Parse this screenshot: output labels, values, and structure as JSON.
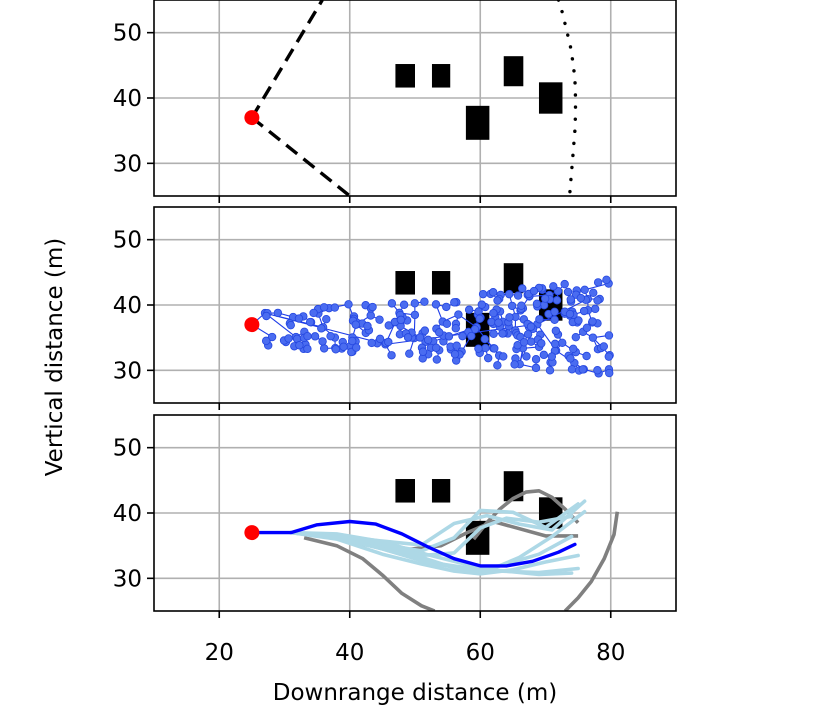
{
  "chart_data": {
    "type": "line",
    "xlabel": "Downrange distance (m)",
    "ylabel": "Vertical distance (m)",
    "xlim": [
      10,
      90
    ],
    "ylim": [
      25,
      55
    ],
    "xticks": [
      20,
      40,
      60,
      80
    ],
    "yticks": [
      30,
      40,
      50
    ],
    "grid": true,
    "colors": {
      "obstacle": "#000000",
      "start": "#ff0000",
      "tree": "#1f3de8",
      "best_path": "#0000ff",
      "sampled_paths": "#add8e6",
      "rejected_paths": "#808080"
    },
    "obstacles": [
      {
        "x": [
          47,
          50
        ],
        "y": [
          41.6,
          45.2
        ]
      },
      {
        "x": [
          52.6,
          55.4
        ],
        "y": [
          41.6,
          45.2
        ]
      },
      {
        "x": [
          57.8,
          61.4
        ],
        "y": [
          33.6,
          38.8
        ]
      },
      {
        "x": [
          63.6,
          66.6
        ],
        "y": [
          41.8,
          46.4
        ]
      },
      {
        "x": [
          69,
          72.6
        ],
        "y": [
          37.6,
          42.4
        ]
      }
    ],
    "start": {
      "x": 25,
      "y": 37
    },
    "panels": [
      {
        "name": "field-of-view",
        "fov_lines": [
          {
            "x": [
              25,
              35.8
            ],
            "y": [
              37,
              55
            ]
          },
          {
            "x": [
              25,
              40
            ],
            "y": [
              37,
              25
            ]
          }
        ],
        "boundary": {
          "x": [
            72,
            72.6,
            73.2,
            73.8,
            74.2,
            74.5,
            74.6,
            74.6,
            74.5,
            74.3,
            74.1,
            73.9,
            73.7
          ],
          "y": [
            55,
            53,
            50.5,
            48,
            45.5,
            43,
            40,
            37.5,
            35,
            32.5,
            30,
            27.5,
            25
          ]
        }
      },
      {
        "name": "rrt-tree",
        "x_range": [
          25,
          80
        ],
        "y_range": [
          29.5,
          45.3
        ]
      },
      {
        "name": "paths",
        "best_path": {
          "x": [
            25,
            31,
            35,
            40,
            44,
            48,
            52,
            56,
            60,
            64,
            68,
            72,
            74.5
          ],
          "y": [
            37,
            37,
            38.2,
            38.7,
            38.3,
            36.8,
            34.8,
            33,
            31.9,
            31.9,
            32.6,
            34,
            35.2
          ]
        },
        "rejected_paths": [
          {
            "x": [
              31,
              36,
              42,
              48,
              54,
              58,
              62,
              66,
              70,
              75
            ],
            "y": [
              37,
              36.5,
              35.2,
              34.3,
              35,
              37,
              38.7,
              37.6,
              36.5,
              36.5
            ]
          },
          {
            "x": [
              33,
              38,
              42,
              45,
              48,
              51,
              53
            ],
            "y": [
              36.2,
              35,
              33,
              30.5,
              27.7,
              25.8,
              25
            ]
          },
          {
            "x": [
              59,
              61,
              63,
              65,
              67,
              69,
              71,
              73,
              75
            ],
            "y": [
              36,
              38.5,
              40.6,
              42.2,
              43.2,
              43.4,
              42.4,
              40.6,
              38.5
            ]
          },
          {
            "x": [
              73,
              75,
              77,
              79,
              80.5,
              81
            ],
            "y": [
              25,
              27,
              29.5,
              33,
              36.7,
              40.2
            ]
          }
        ],
        "sampled_paths": [
          {
            "x": [
              31,
              38,
              45,
              52,
              58,
              63,
              69,
              75
            ],
            "y": [
              37,
              36.2,
              34.5,
              32.5,
              31.6,
              31.1,
              30.9,
              31.5
            ]
          },
          {
            "x": [
              31,
              38,
              45,
              52,
              58,
              63,
              69,
              74
            ],
            "y": [
              37,
              36.8,
              35.6,
              33.6,
              32.1,
              31.2,
              30.6,
              30.8
            ]
          },
          {
            "x": [
              31,
              38,
              45,
              51,
              56,
              60,
              65,
              70,
              75
            ],
            "y": [
              37,
              36.5,
              35.2,
              34.2,
              36.2,
              40.4,
              40.1,
              37.8,
              41.4
            ]
          },
          {
            "x": [
              31,
              38,
              45,
              51,
              56,
              61,
              66,
              71,
              76
            ],
            "y": [
              37,
              36.5,
              34.9,
              33.2,
              31.6,
              31.1,
              33.2,
              36.4,
              40.2
            ]
          },
          {
            "x": [
              31,
              38,
              45,
              51,
              56,
              60,
              65,
              70,
              75
            ],
            "y": [
              37,
              36,
              33.7,
              32.2,
              31.1,
              30.7,
              31.3,
              32.5,
              33.5
            ]
          },
          {
            "x": [
              31,
              38,
              45,
              51,
              56,
              60,
              64,
              69,
              74
            ],
            "y": [
              37,
              36.2,
              35.3,
              33.5,
              33.9,
              37.7,
              39.2,
              38.6,
              39.5
            ]
          },
          {
            "x": [
              31,
              38,
              45,
              51,
              56,
              61,
              66,
              71,
              76
            ],
            "y": [
              37,
              36.5,
              35.7,
              35.1,
              38.4,
              39.6,
              38.3,
              37.4,
              41.8
            ]
          },
          {
            "x": [
              31,
              38,
              45,
              52,
              58,
              63,
              69,
              74
            ],
            "y": [
              37,
              36.2,
              34.5,
              32.4,
              31.4,
              31.9,
              33.7,
              36.4
            ]
          }
        ]
      }
    ]
  }
}
